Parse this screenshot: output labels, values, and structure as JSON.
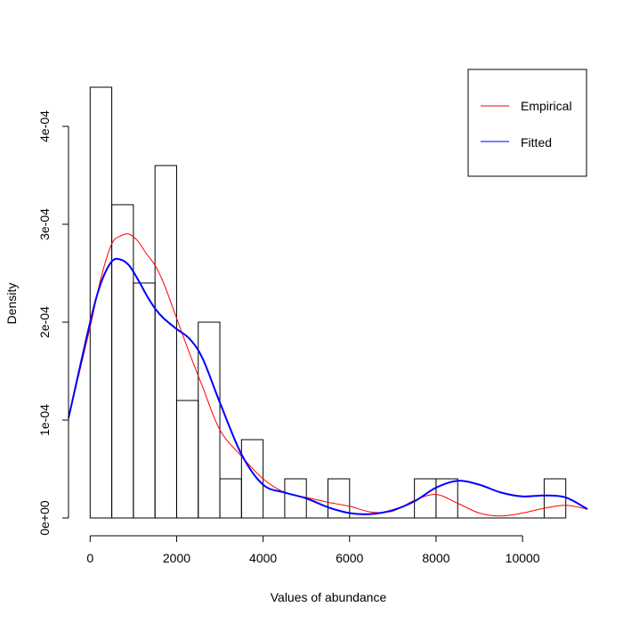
{
  "chart_data": {
    "type": "bar",
    "xlabel": "Values of abundance",
    "ylabel": "Density",
    "xlim": [
      -500,
      11500
    ],
    "ylim": [
      0,
      0.00044
    ],
    "x_ticks": [
      0,
      2000,
      4000,
      6000,
      8000,
      10000
    ],
    "x_tick_labels": [
      "0",
      "2000",
      "4000",
      "6000",
      "8000",
      "10000"
    ],
    "y_ticks": [
      0,
      0.0001,
      0.0002,
      0.0003,
      0.0004
    ],
    "y_tick_labels": [
      "0e+00",
      "1e-04",
      "2e-04",
      "3e-04",
      "4e-04"
    ],
    "bin_width": 500,
    "bins": [
      {
        "start": 0,
        "end": 500,
        "density": 0.00044
      },
      {
        "start": 500,
        "end": 1000,
        "density": 0.00032
      },
      {
        "start": 1000,
        "end": 1500,
        "density": 0.00024
      },
      {
        "start": 1500,
        "end": 2000,
        "density": 0.00036
      },
      {
        "start": 2000,
        "end": 2500,
        "density": 0.00012
      },
      {
        "start": 2500,
        "end": 3000,
        "density": 0.0002
      },
      {
        "start": 3000,
        "end": 3500,
        "density": 4e-05
      },
      {
        "start": 3500,
        "end": 4000,
        "density": 8e-05
      },
      {
        "start": 4000,
        "end": 4500,
        "density": 0
      },
      {
        "start": 4500,
        "end": 5000,
        "density": 4e-05
      },
      {
        "start": 5000,
        "end": 5500,
        "density": 0
      },
      {
        "start": 5500,
        "end": 6000,
        "density": 4e-05
      },
      {
        "start": 6000,
        "end": 6500,
        "density": 0
      },
      {
        "start": 6500,
        "end": 7000,
        "density": 0
      },
      {
        "start": 7000,
        "end": 7500,
        "density": 0
      },
      {
        "start": 7500,
        "end": 8000,
        "density": 4e-05
      },
      {
        "start": 8000,
        "end": 8500,
        "density": 4e-05
      },
      {
        "start": 8500,
        "end": 9000,
        "density": 0
      },
      {
        "start": 9000,
        "end": 9500,
        "density": 0
      },
      {
        "start": 9500,
        "end": 10000,
        "density": 0
      },
      {
        "start": 10000,
        "end": 10500,
        "density": 0
      },
      {
        "start": 10500,
        "end": 11000,
        "density": 4e-05
      }
    ],
    "series": [
      {
        "name": "Empirical",
        "color": "#ff0000",
        "x": [
          -500,
          0,
          250,
          500,
          700,
          900,
          1100,
          1300,
          1500,
          1700,
          2000,
          2300,
          2600,
          3000,
          3500,
          4000,
          4500,
          5000,
          5500,
          6000,
          6500,
          7000,
          7500,
          8000,
          8500,
          9000,
          9500,
          10000,
          10500,
          11000,
          11500
        ],
        "y": [
          0.000102,
          0.000195,
          0.000245,
          0.00028,
          0.000288,
          0.00029,
          0.000283,
          0.00027,
          0.000258,
          0.00024,
          0.000204,
          0.000168,
          0.000134,
          9e-05,
          6.3e-05,
          4e-05,
          2.6e-05,
          2.1e-05,
          1.6e-05,
          1.2e-05,
          6e-06,
          7e-06,
          1.8e-05,
          2.4e-05,
          1.5e-05,
          5e-06,
          2e-06,
          5e-06,
          1e-05,
          1.3e-05,
          9e-06
        ]
      },
      {
        "name": "Fitted",
        "color": "#0000ff",
        "x": [
          -500,
          0,
          250,
          500,
          700,
          900,
          1100,
          1300,
          1500,
          1700,
          2000,
          2300,
          2600,
          3000,
          3500,
          4000,
          4500,
          5000,
          5500,
          6000,
          6500,
          7000,
          7500,
          8000,
          8500,
          9000,
          9500,
          10000,
          10500,
          11000,
          11500
        ],
        "y": [
          0.000102,
          0.0002,
          0.00024,
          0.000262,
          0.000264,
          0.000258,
          0.000244,
          0.000228,
          0.000214,
          0.000204,
          0.000193,
          0.000183,
          0.000163,
          0.000118,
          6.5e-05,
          3.4e-05,
          2.6e-05,
          2e-05,
          1.1e-05,
          5e-06,
          4e-06,
          8e-06,
          1.7e-05,
          3.1e-05,
          3.8e-05,
          3.4e-05,
          2.6e-05,
          2.2e-05,
          2.3e-05,
          2.1e-05,
          9e-06
        ]
      }
    ],
    "legend": {
      "position": "top-right",
      "entries": [
        "Empirical",
        "Fitted"
      ]
    }
  }
}
